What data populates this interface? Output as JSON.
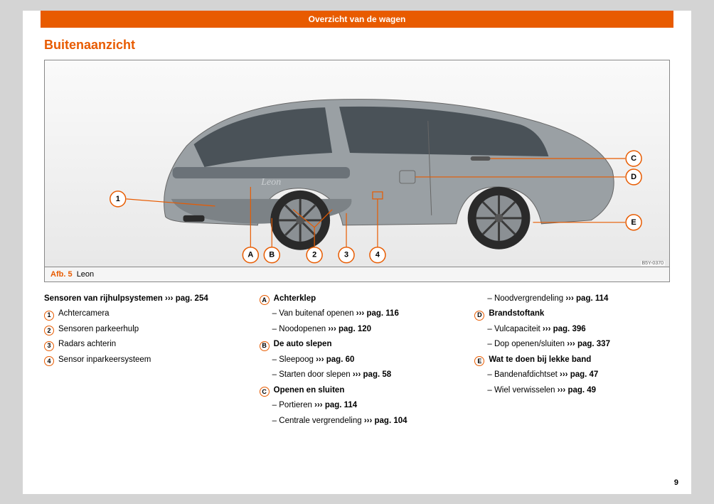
{
  "header": "Overzicht van de wagen",
  "title": "Buitenaanzicht",
  "figure": {
    "afb_label": "Afb. 5",
    "name": "Leon",
    "code": "B5Y-0370",
    "callouts": {
      "n1": "1",
      "n2": "2",
      "n3": "3",
      "n4": "4",
      "a": "A",
      "b": "B",
      "c": "C",
      "d": "D",
      "e": "E"
    }
  },
  "arrow": "›››",
  "col1": {
    "heading": "Sensoren van rijhulpsystemen",
    "heading_ref": "pag. 254",
    "items": [
      {
        "m": "1",
        "text": "Achtercamera"
      },
      {
        "m": "2",
        "text": "Sensoren parkeerhulp"
      },
      {
        "m": "3",
        "text": "Radars achterin"
      },
      {
        "m": "4",
        "text": "Sensor inparkeersysteem"
      }
    ]
  },
  "col2": {
    "groups": [
      {
        "m": "A",
        "title": "Achterklep",
        "subs": [
          {
            "text": "Van buitenaf openen",
            "ref": "pag. 116"
          },
          {
            "text": "Noodopenen",
            "ref": "pag. 120"
          }
        ]
      },
      {
        "m": "B",
        "title": "De auto slepen",
        "subs": [
          {
            "text": "Sleepoog",
            "ref": "pag. 60"
          },
          {
            "text": "Starten door slepen",
            "ref": "pag. 58"
          }
        ]
      },
      {
        "m": "C",
        "title": "Openen en sluiten",
        "subs": [
          {
            "text": "Portieren",
            "ref": "pag. 114"
          },
          {
            "text": "Centrale vergrendeling",
            "ref": "pag. 104"
          }
        ]
      }
    ]
  },
  "col3": {
    "leading_sub": {
      "text": "Noodvergrendeling",
      "ref": "pag. 114"
    },
    "groups": [
      {
        "m": "D",
        "title": "Brandstoftank",
        "subs": [
          {
            "text": "Vulcapaciteit",
            "ref": "pag. 396"
          },
          {
            "text": "Dop openen/sluiten",
            "ref": "pag. 337"
          }
        ]
      },
      {
        "m": "E",
        "title": "Wat te doen bij lekke band",
        "subs": [
          {
            "text": "Bandenafdichtset",
            "ref": "pag. 47"
          },
          {
            "text": "Wiel verwisselen",
            "ref": "pag. 49"
          }
        ]
      }
    ]
  },
  "page_number": "9",
  "colors": {
    "accent": "#e85b00",
    "page_bg": "#ffffff",
    "outer_bg": "#d4d4d4"
  }
}
